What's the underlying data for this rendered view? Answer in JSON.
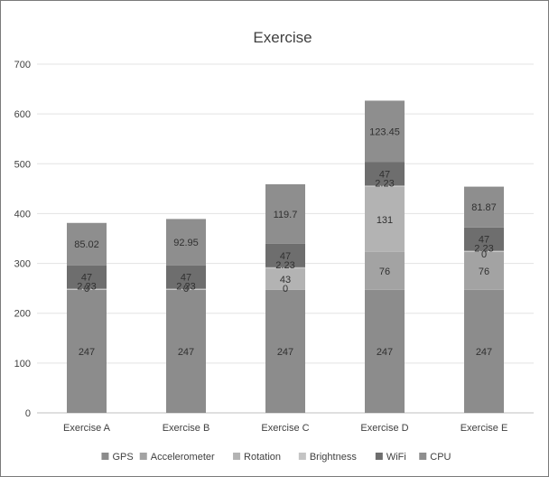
{
  "chart_data": {
    "type": "bar",
    "stacked": true,
    "title": "Exercise",
    "xlabel": "",
    "ylabel": "",
    "ylim": [
      0,
      700
    ],
    "yticks": [
      0,
      100,
      200,
      300,
      400,
      500,
      600,
      700
    ],
    "grid": true,
    "legend_position": "bottom",
    "categories": [
      "Exercise A",
      "Exercise B",
      "Exercise C",
      "Exercise D",
      "Exercise E"
    ],
    "series": [
      {
        "name": "GPS",
        "color": "#8c8c8c",
        "values": [
          247,
          247,
          247,
          247,
          247
        ],
        "labels": [
          "247",
          "247",
          "247",
          "247",
          "247"
        ]
      },
      {
        "name": "Accelerometer",
        "color": "#a3a3a3",
        "values": [
          0,
          0,
          0,
          76,
          76
        ],
        "labels": [
          "",
          "",
          "",
          "76",
          "76"
        ]
      },
      {
        "name": "Rotation",
        "color": "#b3b3b3",
        "values": [
          0,
          0,
          43,
          131,
          0
        ],
        "labels": [
          "",
          "",
          "43",
          "131",
          "0"
        ]
      },
      {
        "name": "Brightness",
        "color": "#c4c4c4",
        "values": [
          2.23,
          2.23,
          2.23,
          2.23,
          2.23
        ],
        "labels": [
          "2.23",
          "2.23",
          "2.23",
          "2.23",
          "2.23"
        ]
      },
      {
        "name": "WiFi",
        "color": "#6e6e6e",
        "values": [
          47,
          47,
          47,
          47,
          47
        ],
        "labels": [
          "47",
          "47",
          "47",
          "47",
          "47"
        ]
      },
      {
        "name": "CPU",
        "color": "#8e8e8e",
        "values": [
          85.02,
          92.95,
          119.7,
          123.45,
          81.87
        ],
        "labels": [
          "85.02",
          "92.95",
          "119.7",
          "123.45",
          "81.87"
        ]
      }
    ],
    "extra_labels": [
      {
        "category": "Exercise A",
        "series": "Rotation",
        "text": "0"
      },
      {
        "category": "Exercise B",
        "series": "Rotation",
        "text": "0"
      },
      {
        "category": "Exercise C",
        "series": "Accelerometer",
        "text": "0"
      }
    ]
  }
}
